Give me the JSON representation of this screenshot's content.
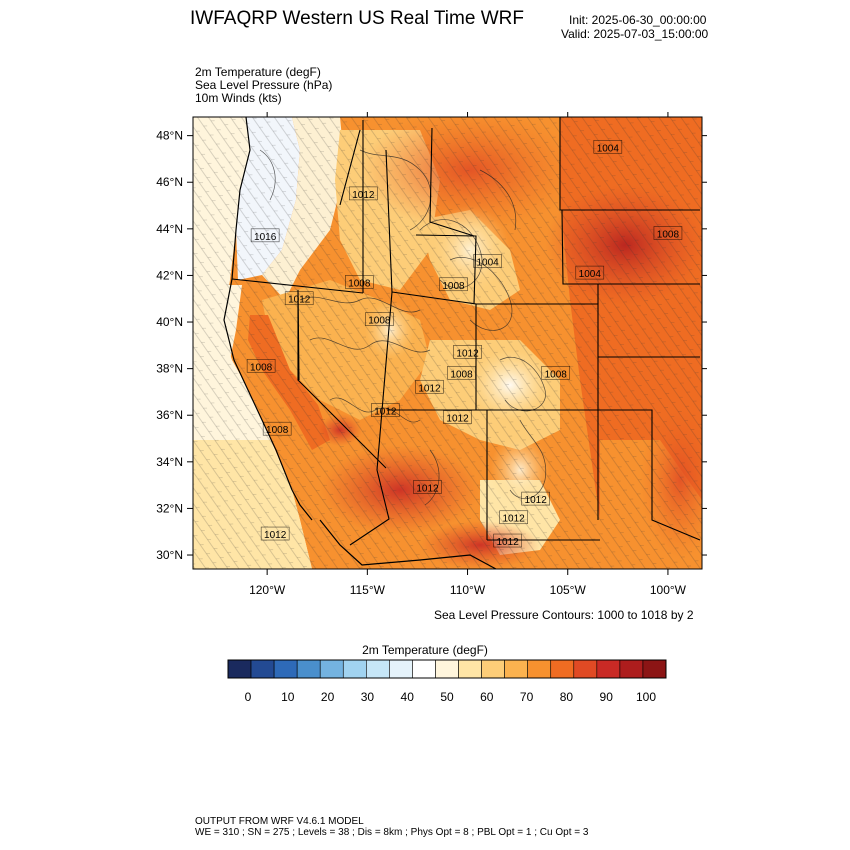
{
  "header": {
    "title": "IWFAQRP Western US Real Time WRF",
    "init": "Init: 2025-06-30_00:00:00",
    "valid": "Valid: 2025-07-03_15:00:00"
  },
  "fields": [
    "2m Temperature   (degF)",
    "Sea Level Pressure   (hPa)",
    "10m Winds   (kts)"
  ],
  "map": {
    "lon_range": [
      -123.7,
      -98.3
    ],
    "lat_range": [
      29.4,
      48.8
    ],
    "lon_ticks": [
      {
        "value": -120,
        "label": "120°W"
      },
      {
        "value": -115,
        "label": "115°W"
      },
      {
        "value": -110,
        "label": "110°W"
      },
      {
        "value": -105,
        "label": "105°W"
      },
      {
        "value": -100,
        "label": "100°W"
      }
    ],
    "lat_ticks": [
      {
        "value": 30,
        "label": "30°N"
      },
      {
        "value": 32,
        "label": "32°N"
      },
      {
        "value": 34,
        "label": "34°N"
      },
      {
        "value": 36,
        "label": "36°N"
      },
      {
        "value": 38,
        "label": "38°N"
      },
      {
        "value": 40,
        "label": "40°N"
      },
      {
        "value": 42,
        "label": "42°N"
      },
      {
        "value": 44,
        "label": "44°N"
      },
      {
        "value": 46,
        "label": "46°N"
      },
      {
        "value": 48,
        "label": "48°N"
      }
    ],
    "pressure_labels": [
      {
        "text": "1004",
        "lon": -103.0,
        "lat": 47.5
      },
      {
        "text": "1012",
        "lon": -115.2,
        "lat": 45.5
      },
      {
        "text": "1016",
        "lon": -120.1,
        "lat": 43.7
      },
      {
        "text": "1008",
        "lon": -100.0,
        "lat": 43.8
      },
      {
        "text": "1004",
        "lon": -109.0,
        "lat": 42.6
      },
      {
        "text": "1004",
        "lon": -103.9,
        "lat": 42.1
      },
      {
        "text": "1008",
        "lon": -115.4,
        "lat": 41.7
      },
      {
        "text": "1008",
        "lon": -110.7,
        "lat": 41.6
      },
      {
        "text": "1012",
        "lon": -118.4,
        "lat": 41.0
      },
      {
        "text": "1008",
        "lon": -114.4,
        "lat": 40.1
      },
      {
        "text": "1012",
        "lon": -110.0,
        "lat": 38.7
      },
      {
        "text": "1008",
        "lon": -120.3,
        "lat": 38.1
      },
      {
        "text": "1008",
        "lon": -110.3,
        "lat": 37.8
      },
      {
        "text": "1008",
        "lon": -105.6,
        "lat": 37.8
      },
      {
        "text": "1012",
        "lon": -111.9,
        "lat": 37.2
      },
      {
        "text": "1012",
        "lon": -114.1,
        "lat": 36.2
      },
      {
        "text": "1012",
        "lon": -110.5,
        "lat": 35.9
      },
      {
        "text": "1008",
        "lon": -119.5,
        "lat": 35.4
      },
      {
        "text": "1012",
        "lon": -112.0,
        "lat": 32.9
      },
      {
        "text": "1012",
        "lon": -106.6,
        "lat": 32.4
      },
      {
        "text": "1012",
        "lon": -107.7,
        "lat": 31.6
      },
      {
        "text": "1012",
        "lon": -119.6,
        "lat": 30.9
      },
      {
        "text": "1012",
        "lon": -108.0,
        "lat": 30.6
      }
    ],
    "slp_note": "Sea Level Pressure Contours: 1000 to 1018 by 2"
  },
  "colorbar": {
    "title": "2m Temperature  (degF)",
    "colors": [
      "#1a2a5e",
      "#234a93",
      "#2e6ab8",
      "#4a8fcc",
      "#74b3e0",
      "#a1d3f0",
      "#c6e6f7",
      "#e5f3fb",
      "#ffffff",
      "#fff5dc",
      "#ffe5a6",
      "#fdcd78",
      "#fbb24f",
      "#f7912f",
      "#ef6c22",
      "#e04a24",
      "#c92a25",
      "#ad1d1d",
      "#8c1515"
    ],
    "tick_labels": [
      "0",
      "10",
      "20",
      "30",
      "40",
      "50",
      "60",
      "70",
      "80",
      "90",
      "100"
    ]
  },
  "footer": {
    "line1": "OUTPUT FROM WRF V4.6.1 MODEL",
    "line2": "WE = 310 ; SN = 275 ; Levels = 38 ; Dis = 8km ; Phys Opt = 8 ; PBL Opt = 1 ; Cu Opt = 3"
  }
}
